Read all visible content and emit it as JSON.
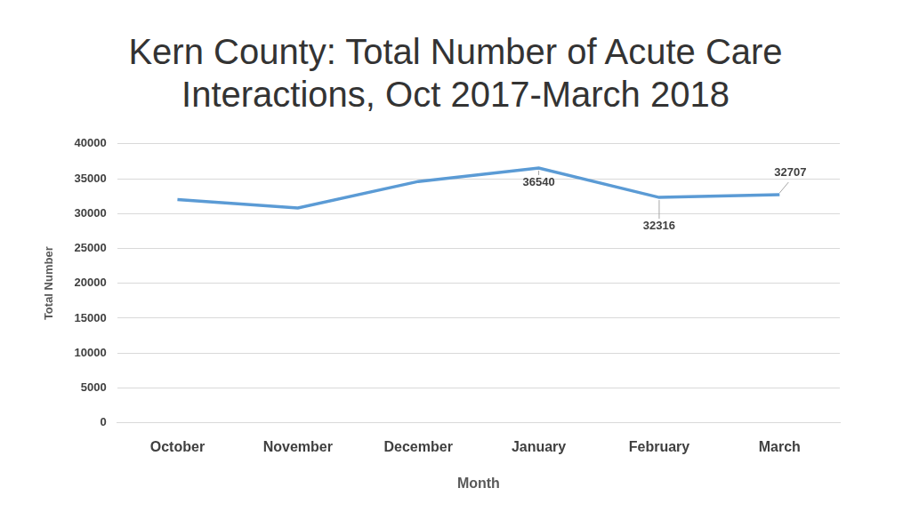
{
  "chart_data": {
    "type": "line",
    "title": "Kern County: Total Number of Acute Care Interactions, Oct 2017-March 2018",
    "x_label": "Month",
    "y_label": "Total Number",
    "categories": [
      "October",
      "November",
      "December",
      "January",
      "February",
      "March"
    ],
    "values": [
      32000,
      30800,
      34600,
      36540,
      32316,
      32707
    ],
    "value_labels": [
      null,
      null,
      null,
      "36540",
      "32316",
      "32707"
    ],
    "data_labels": true,
    "color": "#5b9bd5",
    "ylim": [
      0,
      40000
    ],
    "yticks": [
      0,
      5000,
      10000,
      15000,
      20000,
      25000,
      30000,
      35000,
      40000
    ],
    "grid": true
  }
}
